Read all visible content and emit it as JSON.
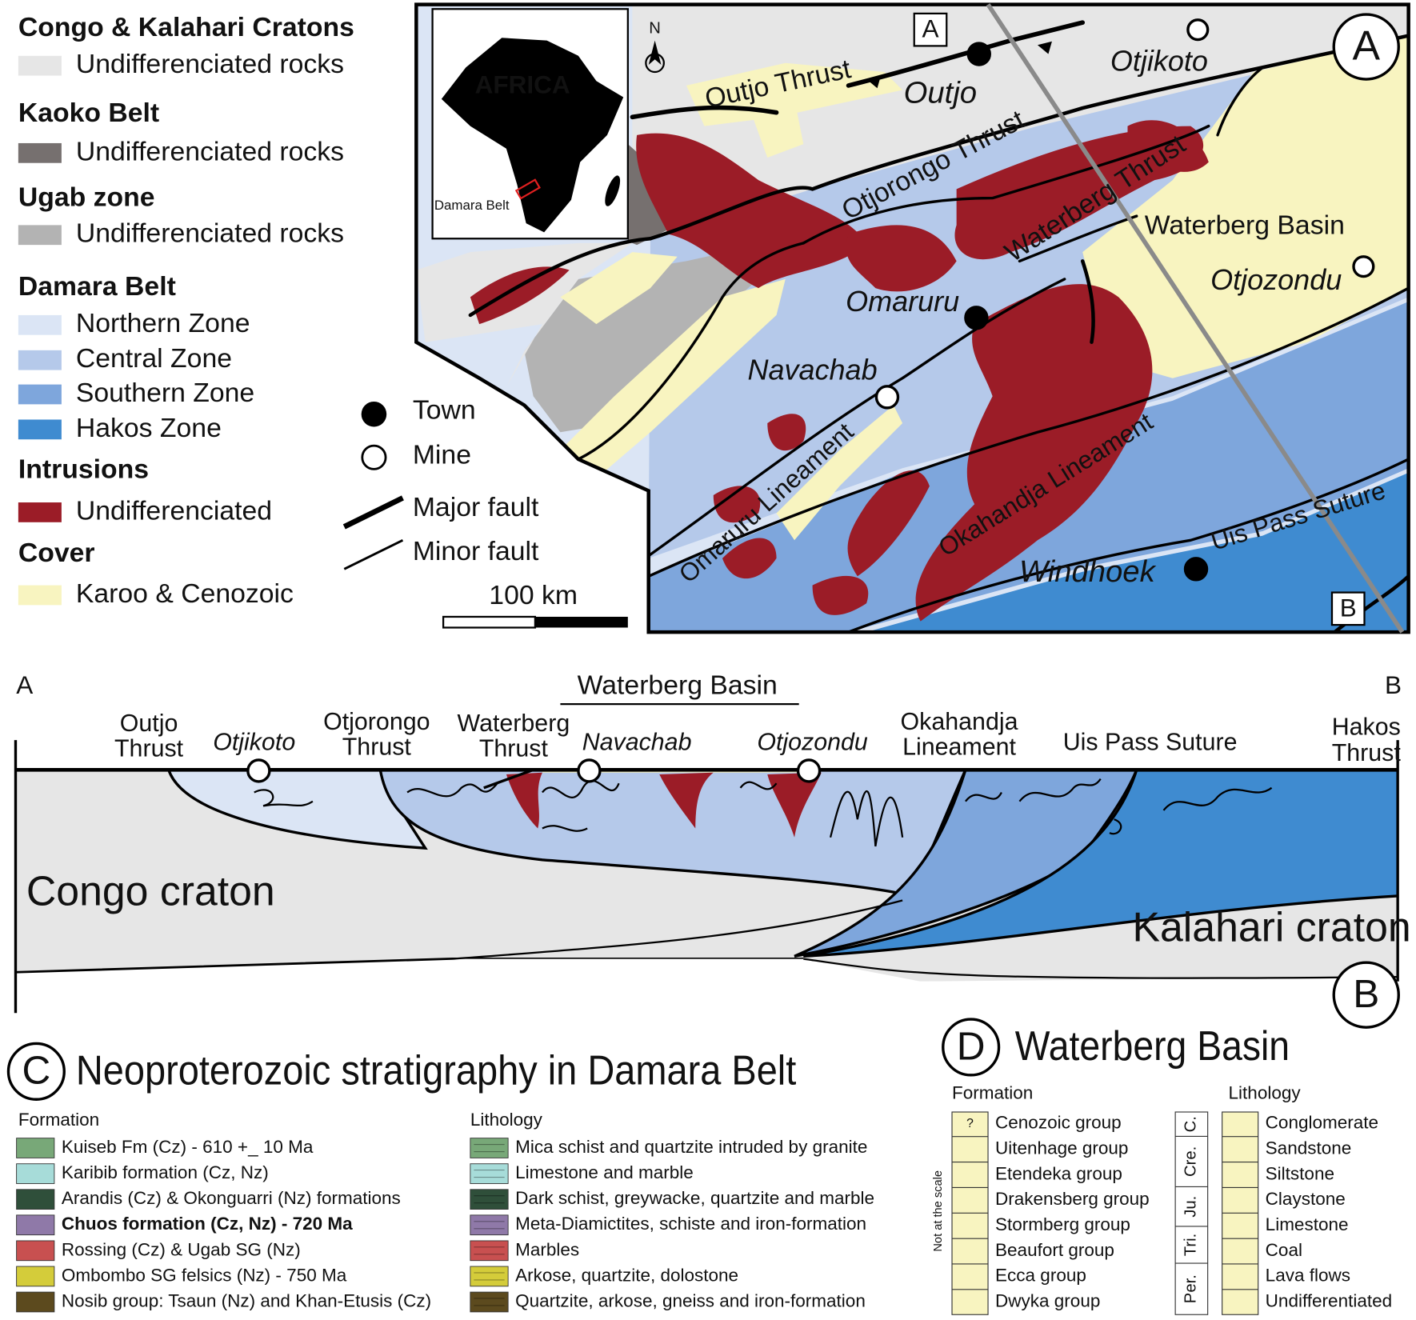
{
  "legend": {
    "groups": [
      {
        "title": "Congo & Kalahari Cratons",
        "items": [
          "Undifferenciated rocks"
        ]
      },
      {
        "title": "Kaoko Belt",
        "items": [
          "Undifferenciated rocks"
        ]
      },
      {
        "title": "Ugab zone",
        "items": [
          "Undifferenciated rocks"
        ]
      },
      {
        "title": "Damara Belt",
        "items": [
          "Northern Zone",
          "Central Zone",
          "Southern Zone",
          "Hakos Zone"
        ]
      },
      {
        "title": "Intrusions",
        "items": [
          "Undifferenciated"
        ]
      },
      {
        "title": "Cover",
        "items": [
          "Karoo & Cenozoic"
        ]
      }
    ],
    "symbols": [
      "Town",
      "Mine",
      "Major fault",
      "Minor fault"
    ],
    "scale_bar": "100 km"
  },
  "map": {
    "panel": "A",
    "north": "N",
    "inset_title": "AFRICA",
    "inset_label": "Damara Belt",
    "profile_ends": [
      "A",
      "B"
    ],
    "labels": [
      "Outjo Thrust",
      "Outjo",
      "Otjikoto",
      "Otjorongo Thrust",
      "Waterberg Thrust",
      "Waterberg Basin",
      "Otjozondu",
      "Omaruru",
      "Navachab",
      "Omaruru Lineament",
      "Okahandja Lineament",
      "Uis Pass Suture",
      "Windhoek"
    ]
  },
  "section": {
    "panel": "B",
    "ends": [
      "A",
      "B"
    ],
    "basin": "Waterberg Basin",
    "labels": [
      [
        "Outjo",
        "Thrust"
      ],
      [
        "Otjikoto"
      ],
      [
        "Otjorongo",
        "Thrust"
      ],
      [
        "Waterberg",
        "Thrust"
      ],
      [
        "Navachab"
      ],
      [
        "Otjozondu"
      ],
      [
        "Okahandja",
        "Lineament"
      ],
      [
        "Uis Pass Suture"
      ],
      [
        "Hakos",
        "Thrust"
      ]
    ],
    "cratons": [
      "Congo craton",
      "Kalahari craton"
    ]
  },
  "stratigraphy": {
    "panel": "C",
    "title": "Neoproterozoic stratigraphy in Damara Belt",
    "formation_header": "Formation",
    "lithology_header": "Lithology",
    "formations": [
      "Kuiseb Fm (Cz) - 610 +_ 10 Ma",
      "Karibib formation (Cz, Nz)",
      "Arandis (Cz) & Okonguarri (Nz) formations",
      "Chuos formation (Cz, Nz) - 720 Ma",
      "Rossing (Cz) & Ugab SG (Nz)",
      "Ombombo SG felsics (Nz) - 750 Ma",
      "Nosib group: Tsaun (Nz) and Khan-Etusis (Cz)"
    ],
    "lithologies": [
      "Mica schist and quartzite intruded by granite",
      "Limestone and marble",
      "Dark schist, greywacke, quartzite and marble",
      "Meta-Diamictites, schiste and iron-formation",
      "Marbles",
      "Arkose, quartzite, dolostone",
      "Quartzite, arkose, gneiss and iron-formation"
    ]
  },
  "waterberg": {
    "panel": "D",
    "title": "Waterberg Basin",
    "formation_header": "Formation",
    "lithology_header": "Lithology",
    "note": "Not at the scale",
    "unknown_mark": "?",
    "groups": [
      "Cenozoic group",
      "Uitenhage group",
      "Etendeka group",
      "Drakensberg group",
      "Stormberg group",
      "Beaufort group",
      "Ecca group",
      "Dwyka group"
    ],
    "periods": [
      "C.",
      "Cre.",
      "Ju.",
      "Tri.",
      "Per."
    ],
    "lithologies": [
      "Conglomerate",
      "Sandstone",
      "Siltstone",
      "Claystone",
      "Limestone",
      "Coal",
      "Lava flows",
      "Undifferentiated"
    ]
  }
}
